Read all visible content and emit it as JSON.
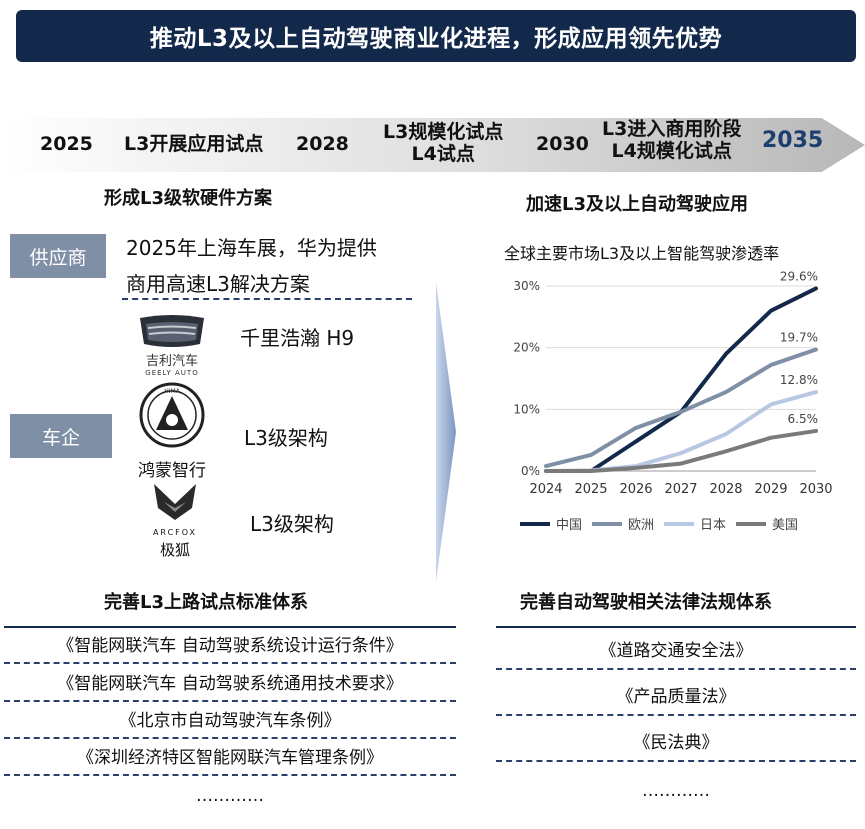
{
  "header": {
    "title": "推动L3及以上自动驾驶商业化进程，形成应用领先优势"
  },
  "timeline": {
    "items": [
      {
        "label": "2025"
      },
      {
        "label": "L3开展应用试点"
      },
      {
        "label": "2028"
      },
      {
        "label": "L3规模化试点",
        "label2": "L4试点"
      },
      {
        "label": "2030"
      },
      {
        "label": "L3进入商用阶段",
        "label2": "L4规模化试点"
      },
      {
        "label": "2035"
      }
    ],
    "colors": {
      "emphasis": "#1c3f6e"
    }
  },
  "left_panel": {
    "heading": "形成L3级软硬件方案",
    "supplier": {
      "tag": "供应商",
      "line1": "2025年上海车展，华为提供",
      "line2": "商用高速L3解决方案"
    },
    "automaker": {
      "tag": "车企",
      "brands": [
        {
          "logo_text": "吉利汽车",
          "logo_sub": "GEELY AUTO",
          "desc": "千里浩瀚 H9"
        },
        {
          "logo_text": "鸿蒙智行",
          "logo_sub": "HIMA",
          "desc": "L3级架构"
        },
        {
          "logo_text": "极狐",
          "logo_sub": "ARCFOX",
          "desc": "L3级架构"
        }
      ]
    }
  },
  "right_panel": {
    "heading": "加速L3及以上自动驾驶应用"
  },
  "chart_data": {
    "type": "line",
    "title": "全球主要市场L3及以上智能驾驶渗透率",
    "x": [
      "2024",
      "2025",
      "2026",
      "2027",
      "2028",
      "2029",
      "2030"
    ],
    "yticks": [
      "0%",
      "10%",
      "20%",
      "30%"
    ],
    "ylim": [
      0,
      30
    ],
    "grid": true,
    "legend_position": "bottom",
    "series": [
      {
        "name": "中国",
        "color": "#13294b",
        "values": [
          0,
          0,
          4.8,
          9.6,
          19.0,
          26.0,
          29.6
        ],
        "end_label": "29.6%"
      },
      {
        "name": "欧洲",
        "color": "#7f8fa6",
        "values": [
          0.8,
          2.6,
          7.0,
          9.6,
          12.8,
          17.2,
          19.7
        ],
        "end_label": "19.7%"
      },
      {
        "name": "日本",
        "color": "#b8c8e2",
        "values": [
          0,
          0.1,
          0.8,
          2.9,
          6.0,
          10.8,
          12.8
        ],
        "end_label": "12.8%"
      },
      {
        "name": "美国",
        "color": "#7a7a7a",
        "values": [
          0,
          0,
          0.5,
          1.2,
          3.2,
          5.4,
          6.5
        ],
        "end_label": "6.5%"
      }
    ]
  },
  "bottom_left": {
    "heading": "完善L3上路试点标准体系",
    "items": [
      "《智能网联汽车 自动驾驶系统设计运行条件》",
      "《智能网联汽车 自动驾驶系统通用技术要求》",
      "《北京市自动驾驶汽车条例》",
      "《深圳经济特区智能网联汽车管理条例》",
      "…………"
    ]
  },
  "bottom_right": {
    "heading": "完善自动驾驶相关法律法规体系",
    "items": [
      "《道路交通安全法》",
      "《产品质量法》",
      "《民法典》",
      "…………"
    ]
  }
}
